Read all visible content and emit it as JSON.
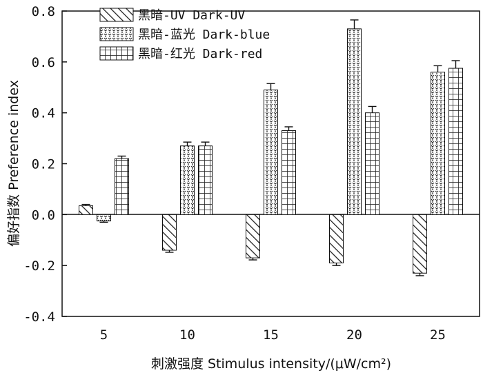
{
  "chart_data": {
    "type": "bar",
    "xlabel": "刺激强度 Stimulus intensity/(μW/cm²)",
    "ylabel": "偏好指数 Preference index",
    "ylim": [
      -0.4,
      0.8
    ],
    "yticks": [
      "-0.4",
      "-0.2",
      "0.0",
      "0.2",
      "0.4",
      "0.6",
      "0.8"
    ],
    "categories": [
      "5",
      "10",
      "15",
      "20",
      "25"
    ],
    "grid": false,
    "legend_position": "top-left",
    "series": [
      {
        "name": "黑暗-UV Dark-UV",
        "pattern": "diagonal-hatch",
        "values": [
          0.035,
          -0.14,
          -0.17,
          -0.19,
          -0.23
        ],
        "errors": [
          0.005,
          0.008,
          0.008,
          0.01,
          0.01
        ]
      },
      {
        "name": "黑暗-蓝光 Dark-blue",
        "pattern": "dots",
        "values": [
          -0.025,
          0.27,
          0.49,
          0.73,
          0.56
        ],
        "errors": [
          0.005,
          0.015,
          0.025,
          0.035,
          0.025
        ]
      },
      {
        "name": "黑暗-红光 Dark-red",
        "pattern": "grid",
        "values": [
          0.22,
          0.27,
          0.33,
          0.4,
          0.575
        ],
        "errors": [
          0.01,
          0.015,
          0.015,
          0.025,
          0.03
        ]
      }
    ]
  }
}
